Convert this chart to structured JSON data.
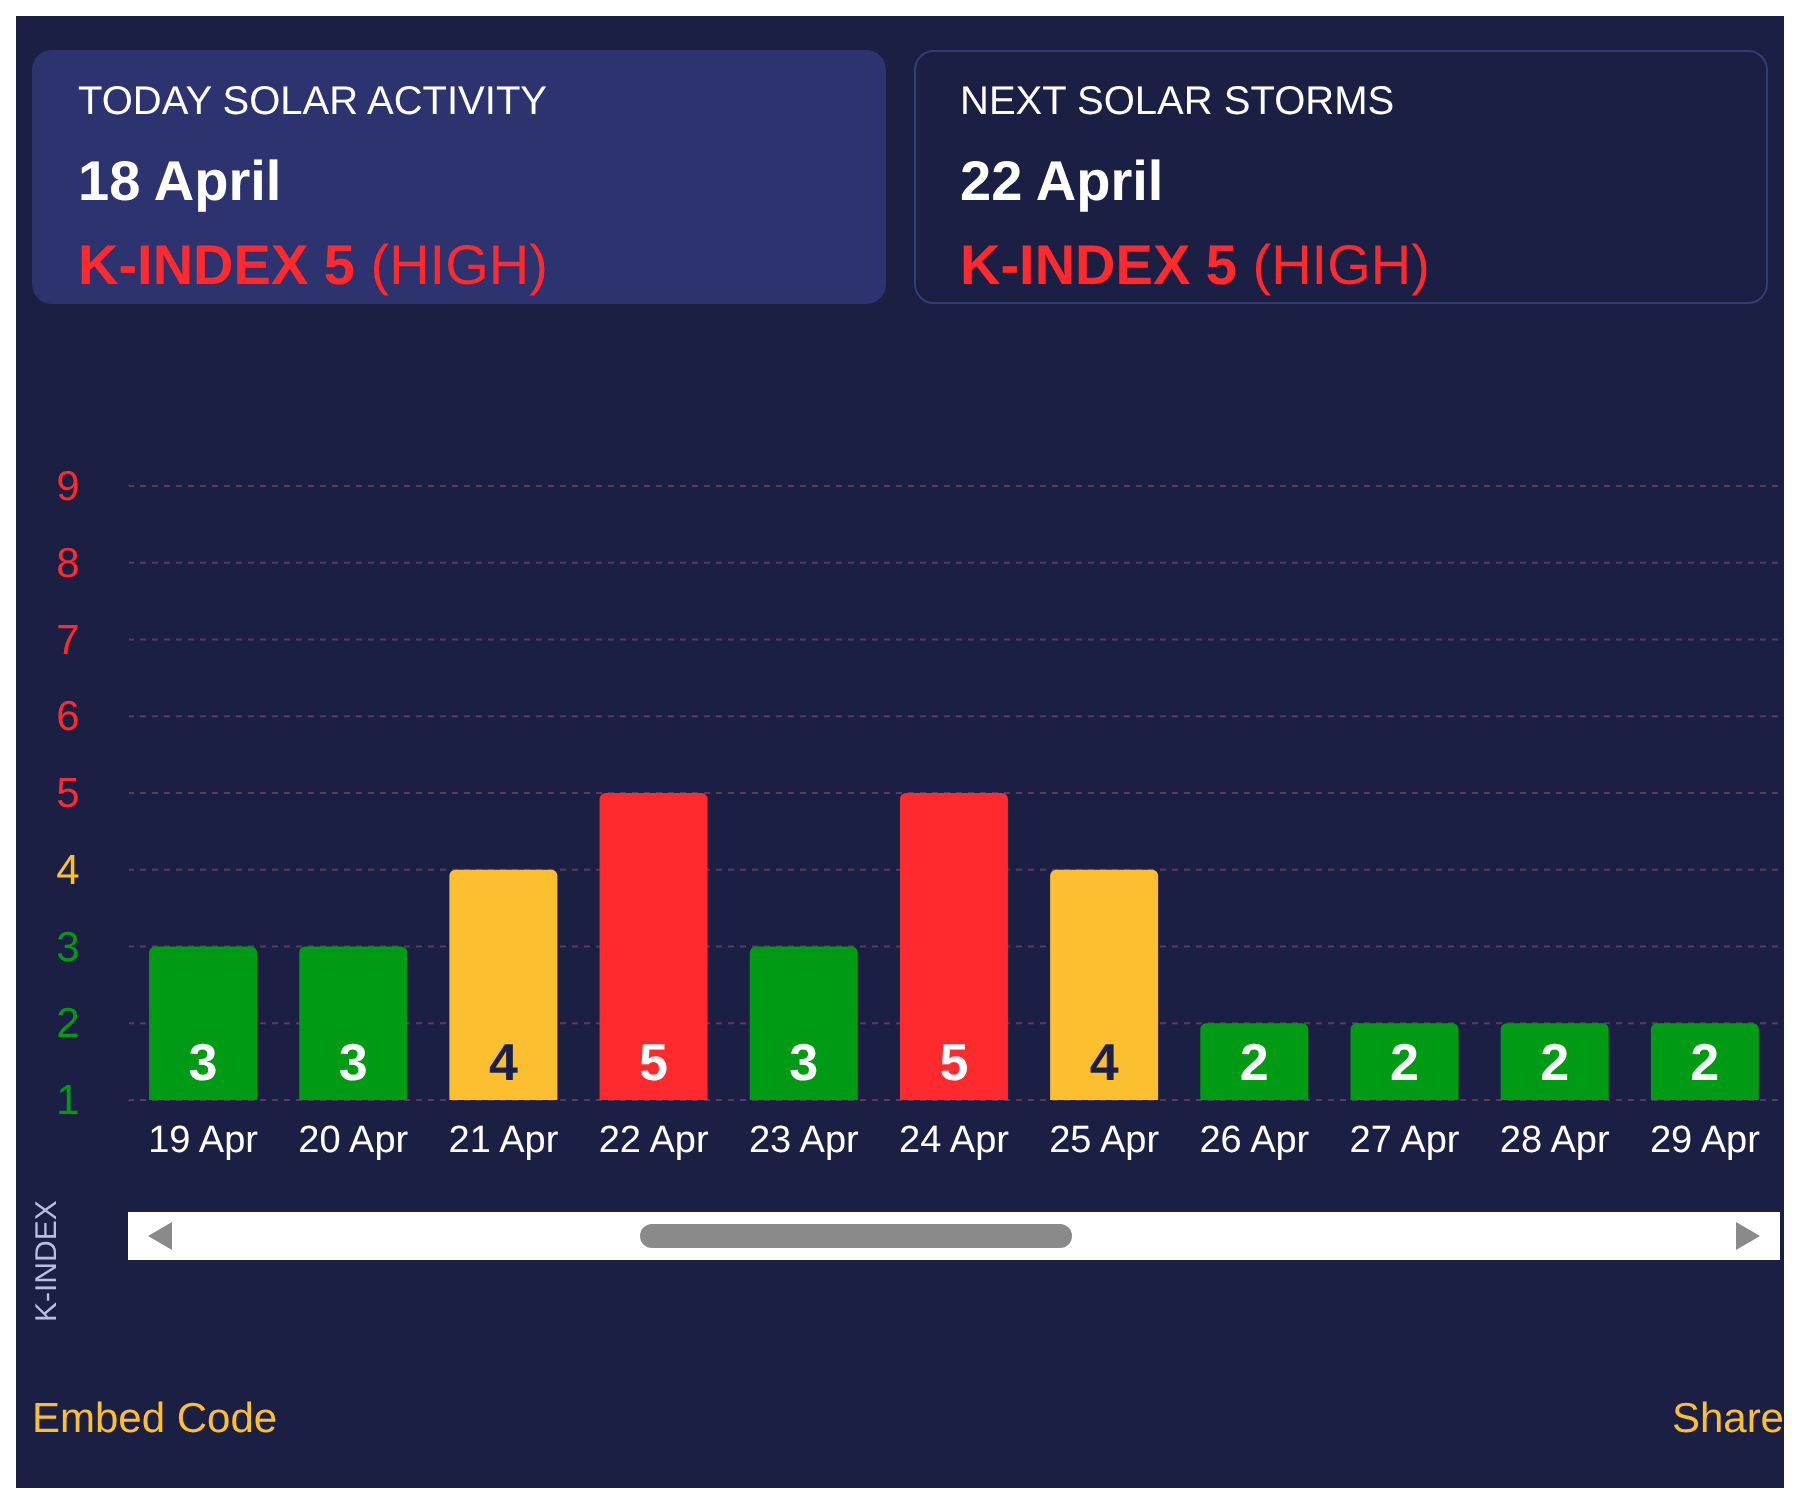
{
  "chart_data": {
    "type": "bar",
    "ylabel": "K-INDEX",
    "categories": [
      "19 Apr",
      "20 Apr",
      "21 Apr",
      "22 Apr",
      "23 Apr",
      "24 Apr",
      "25 Apr",
      "26 Apr",
      "27 Apr",
      "28 Apr",
      "29 Apr"
    ],
    "values": [
      3,
      3,
      4,
      5,
      3,
      5,
      4,
      2,
      2,
      2,
      2
    ],
    "colors": [
      "#009b14",
      "#009b14",
      "#fbbf2f",
      "#ff2a2e",
      "#009b14",
      "#ff2a2e",
      "#fbbf2f",
      "#009b14",
      "#009b14",
      "#009b14",
      "#009b14"
    ],
    "ylim": [
      1,
      9
    ],
    "yticks": [
      1,
      2,
      3,
      4,
      5,
      6,
      7,
      8,
      9
    ],
    "grid": "y",
    "data_labels": true,
    "annotations": [
      "TODAY SOLAR ACTIVITY",
      "18 April",
      "K-INDEX 5",
      "(HIGH)",
      "NEXT SOLAR STORMS",
      "22 April",
      "K-INDEX 5",
      "(HIGH)",
      "Embed Code",
      "Share"
    ]
  }
}
